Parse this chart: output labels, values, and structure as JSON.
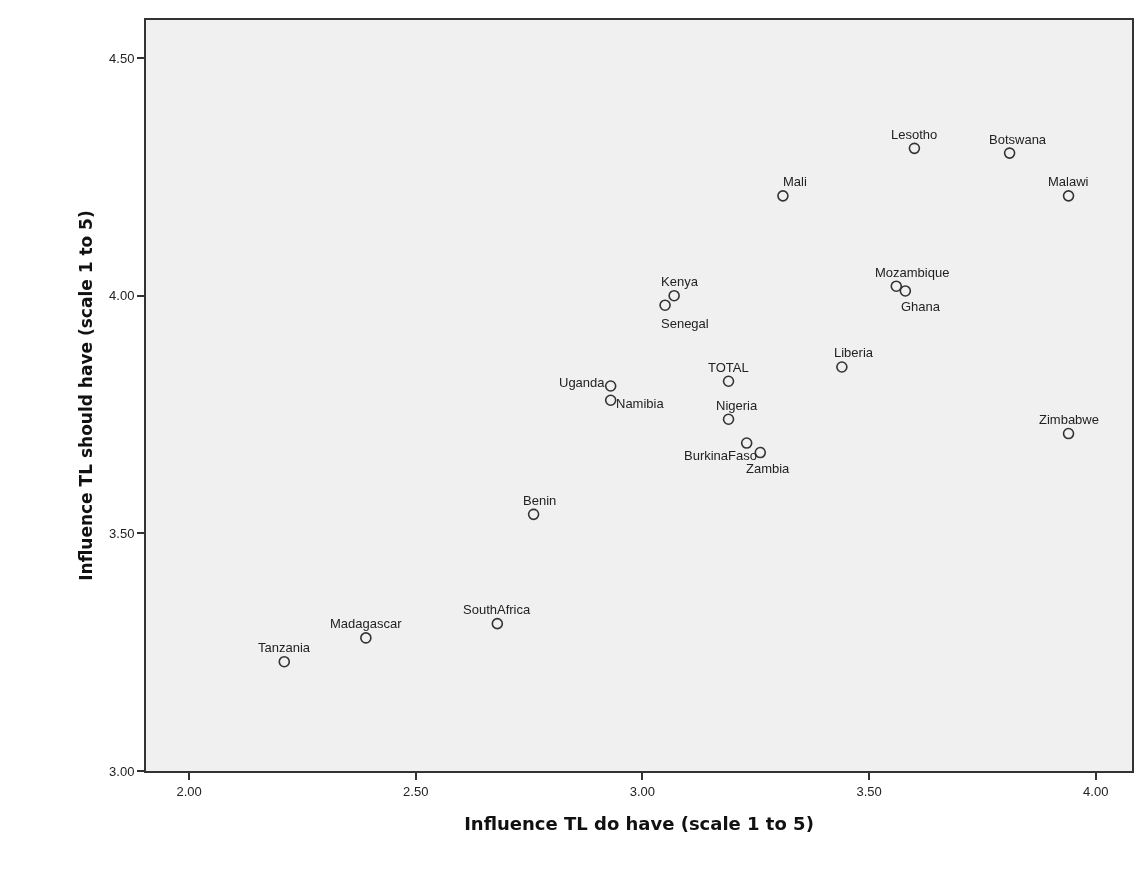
{
  "chart_data": {
    "type": "scatter",
    "xlabel": "Influence TL do have (scale 1 to 5)",
    "ylabel": "Influence TL should have (scale 1 to 5)",
    "x": [
      2.21,
      2.39,
      2.68,
      2.76,
      2.93,
      2.93,
      3.05,
      3.07,
      3.19,
      3.19,
      3.23,
      3.26,
      3.31,
      3.44,
      3.56,
      3.58,
      3.6,
      3.81,
      3.94,
      3.94
    ],
    "series": [
      {
        "color": "#333333",
        "values": [
          3.23,
          3.28,
          3.31,
          3.54,
          3.81,
          3.78,
          3.98,
          4.0,
          3.82,
          3.74,
          3.69,
          3.67,
          4.21,
          3.85,
          4.02,
          4.01,
          4.31,
          4.3,
          4.21,
          3.71
        ]
      }
    ],
    "annotations": [
      {
        "text": "Tanzania",
        "x": 2.21,
        "y": 3.23
      },
      {
        "text": "Madagascar",
        "x": 2.39,
        "y": 3.28
      },
      {
        "text": "SouthAfrica",
        "x": 2.68,
        "y": 3.31
      },
      {
        "text": "Benin",
        "x": 2.76,
        "y": 3.54
      },
      {
        "text": "Uganda",
        "x": 2.93,
        "y": 3.81
      },
      {
        "text": "Namibia",
        "x": 2.93,
        "y": 3.78
      },
      {
        "text": "Senegal",
        "x": 3.05,
        "y": 3.98
      },
      {
        "text": "Kenya",
        "x": 3.07,
        "y": 4.0
      },
      {
        "text": "TOTAL",
        "x": 3.19,
        "y": 3.82
      },
      {
        "text": "Nigeria",
        "x": 3.19,
        "y": 3.74
      },
      {
        "text": "BurkinaFaso",
        "x": 3.23,
        "y": 3.69
      },
      {
        "text": "Zambia",
        "x": 3.26,
        "y": 3.67
      },
      {
        "text": "Mali",
        "x": 3.31,
        "y": 4.21
      },
      {
        "text": "Liberia",
        "x": 3.44,
        "y": 3.85
      },
      {
        "text": "Mozambique",
        "x": 3.56,
        "y": 4.02
      },
      {
        "text": "Ghana",
        "x": 3.58,
        "y": 4.01
      },
      {
        "text": "Lesotho",
        "x": 3.6,
        "y": 4.31
      },
      {
        "text": "Botswana",
        "x": 3.81,
        "y": 4.3
      },
      {
        "text": "Malawi",
        "x": 3.94,
        "y": 4.21
      },
      {
        "text": "Zimbabwe",
        "x": 3.94,
        "y": 3.71
      }
    ],
    "xlim": [
      1.905,
      4.08
    ],
    "ylim": [
      3.0,
      4.58
    ],
    "xticks": [
      {
        "value": 2,
        "label": "2.00"
      },
      {
        "value": 2.5,
        "label": "2.50"
      },
      {
        "value": 3,
        "label": "3.00"
      },
      {
        "value": 3.5,
        "label": "3.50"
      },
      {
        "value": 4,
        "label": "4.00"
      }
    ],
    "yticks": [
      {
        "value": 3,
        "label": "3.00"
      },
      {
        "value": 3.5,
        "label": "3.50"
      },
      {
        "value": 4,
        "label": "4.00"
      },
      {
        "value": 4.5,
        "label": "4.50"
      }
    ],
    "marker": "circle",
    "grid": false
  }
}
